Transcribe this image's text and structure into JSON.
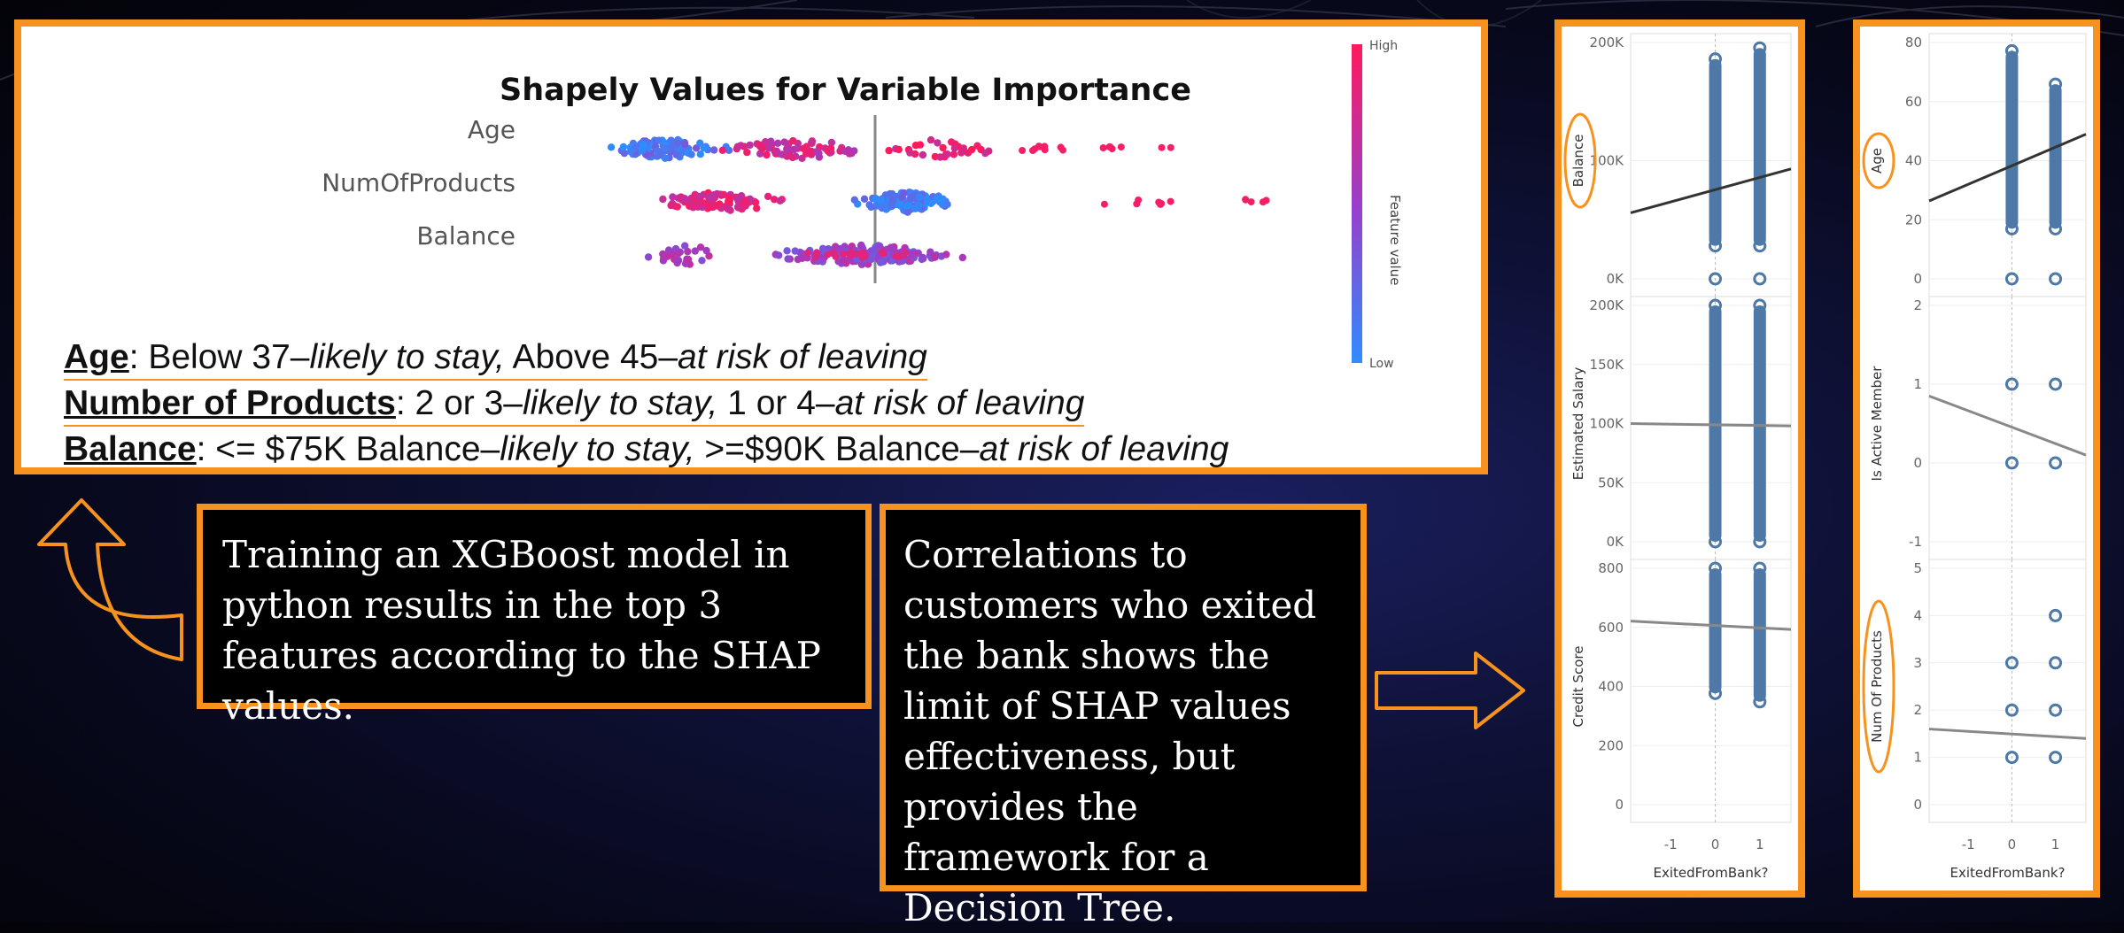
{
  "shap_panel": {
    "title": "Shapely Values for Variable Importance",
    "features": [
      "Age",
      "NumOfProducts",
      "Balance"
    ],
    "colorbar": {
      "high": "High",
      "low": "Low",
      "label": "Feature value"
    }
  },
  "findings": [
    {
      "name": "Age",
      "text_a": ": Below 37–",
      "italic_a": "likely to stay,",
      "text_b": " Above 45–",
      "italic_b": "at risk of leaving"
    },
    {
      "name": "Number of Products",
      "text_a": ": 2 or 3–",
      "italic_a": "likely to stay,",
      "text_b": " 1 or 4–",
      "italic_b": "at risk of leaving"
    },
    {
      "name": "Balance",
      "text_a": ": <= $75K Balance–",
      "italic_a": "likely to stay,",
      "text_b": " >=$90K Balance–",
      "italic_b": "at risk of leaving"
    }
  ],
  "callouts": {
    "training": "Training an XGBoost model in python results in the top 3 features according to the SHAP values.",
    "correlations": "Correlations to customers who exited the bank shows the limit of SHAP values effectiveness, but provides the framework for a Decision Tree."
  },
  "colors": {
    "accent": "#f7921e",
    "point": "#4e79a7",
    "high": "#e8336e",
    "low": "#3b8fef"
  },
  "chart_data": [
    {
      "type": "scatter",
      "panel": "left",
      "xlabel": "ExitedFromBank?",
      "x_ticks": [
        "-1",
        "0",
        "1"
      ],
      "subplots": [
        {
          "ylabel": "Balance",
          "y_ticks": [
            "200K",
            "100K",
            "0K"
          ],
          "ylim": [
            0,
            215000
          ],
          "values": {
            "exited_0": [
              0,
              30000,
              200000
            ],
            "exited_1": [
              0,
              30000,
              210000
            ]
          },
          "trend": [
            60000,
            100000
          ],
          "ylabel_circled": true
        },
        {
          "ylabel": "Estimated Salary",
          "y_ticks": [
            "200K",
            "150K",
            "100K",
            "50K",
            "0K"
          ],
          "ylim": [
            0,
            200000
          ],
          "values": {
            "exited_0": [
              0,
              200000
            ],
            "exited_1": [
              0,
              200000
            ]
          },
          "trend": [
            100000,
            98000
          ]
        },
        {
          "ylabel": "Credit Score",
          "y_ticks": [
            "800",
            "600",
            "400",
            "200",
            "0"
          ],
          "ylim": [
            0,
            850
          ],
          "values": {
            "exited_0": [
              400,
              850
            ],
            "exited_1": [
              370,
              850
            ]
          },
          "trend": [
            660,
            630
          ]
        }
      ]
    },
    {
      "type": "scatter",
      "panel": "right",
      "xlabel": "ExitedFromBank?",
      "x_ticks": [
        "-1",
        "0",
        "1"
      ],
      "subplots": [
        {
          "ylabel": "Age",
          "y_ticks": [
            "80",
            "60",
            "40",
            "20",
            "0"
          ],
          "ylim": [
            0,
            85
          ],
          "values": {
            "exited_0": [
              0,
              18,
              82
            ],
            "exited_1": [
              0,
              18,
              70
            ]
          },
          "trend": [
            28,
            52
          ],
          "ylabel_circled": true
        },
        {
          "ylabel": "Is Active Member",
          "y_ticks": [
            "2",
            "1",
            "0",
            "-1"
          ],
          "ylim": [
            -1,
            2
          ],
          "values": {
            "exited_0": [
              0,
              1
            ],
            "exited_1": [
              0,
              1
            ]
          },
          "trend": [
            0.85,
            0.1
          ]
        },
        {
          "ylabel": "Num Of Products",
          "y_ticks": [
            "5",
            "4",
            "3",
            "2",
            "1",
            "0"
          ],
          "ylim": [
            0,
            5
          ],
          "values": {
            "exited_0": [
              1,
              2,
              3
            ],
            "exited_1": [
              1,
              2,
              3,
              4
            ]
          },
          "trend": [
            1.6,
            1.4
          ],
          "ylabel_circled": true
        }
      ]
    }
  ]
}
